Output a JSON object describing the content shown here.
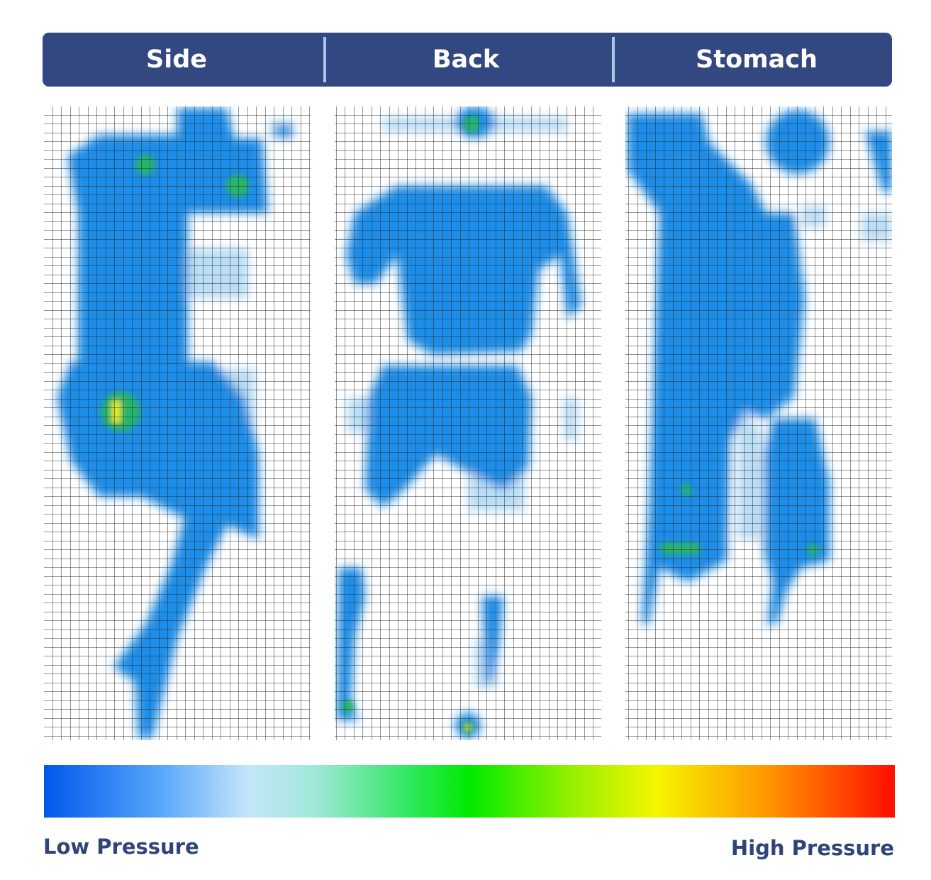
{
  "header": {
    "tabs": [
      "Side",
      "Back",
      "Stomach"
    ]
  },
  "legend": {
    "low": "Low Pressure",
    "high": "High Pressure"
  }
}
